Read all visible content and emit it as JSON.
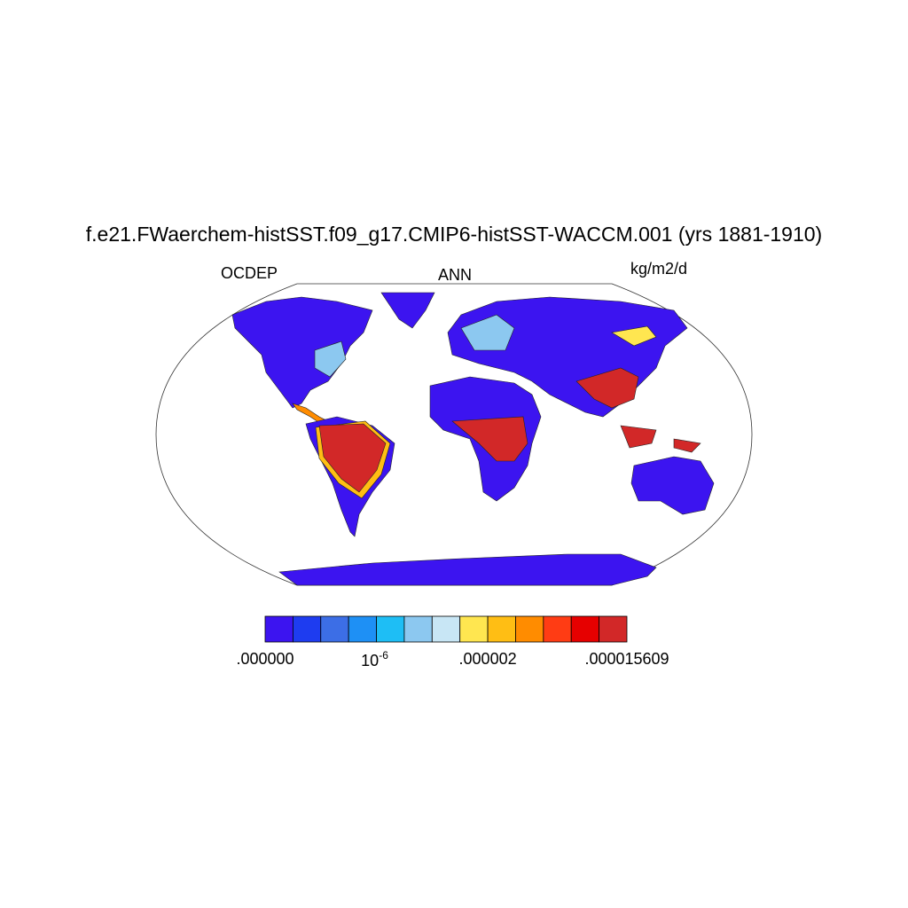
{
  "title": "f.e21.FWaerchem-histSST.f09_g17.CMIP6-histSST-WACCM.001 (yrs 1881-1910)",
  "left_label": "OCDEP",
  "center_label": "ANN",
  "right_label": "kg/m2/d",
  "colorbar": {
    "colors": [
      "#3c14f0",
      "#1e3cf0",
      "#3c6ee6",
      "#1e90f5",
      "#1ebef5",
      "#8cc8f0",
      "#c8e6f5",
      "#ffe650",
      "#ffbe14",
      "#ff8c00",
      "#ff3c14",
      "#e60000",
      "#d22828"
    ],
    "labels": [
      ".000000",
      {
        "base": "10",
        "exponent": "-6"
      },
      ".000002",
      ".000015609"
    ]
  }
}
